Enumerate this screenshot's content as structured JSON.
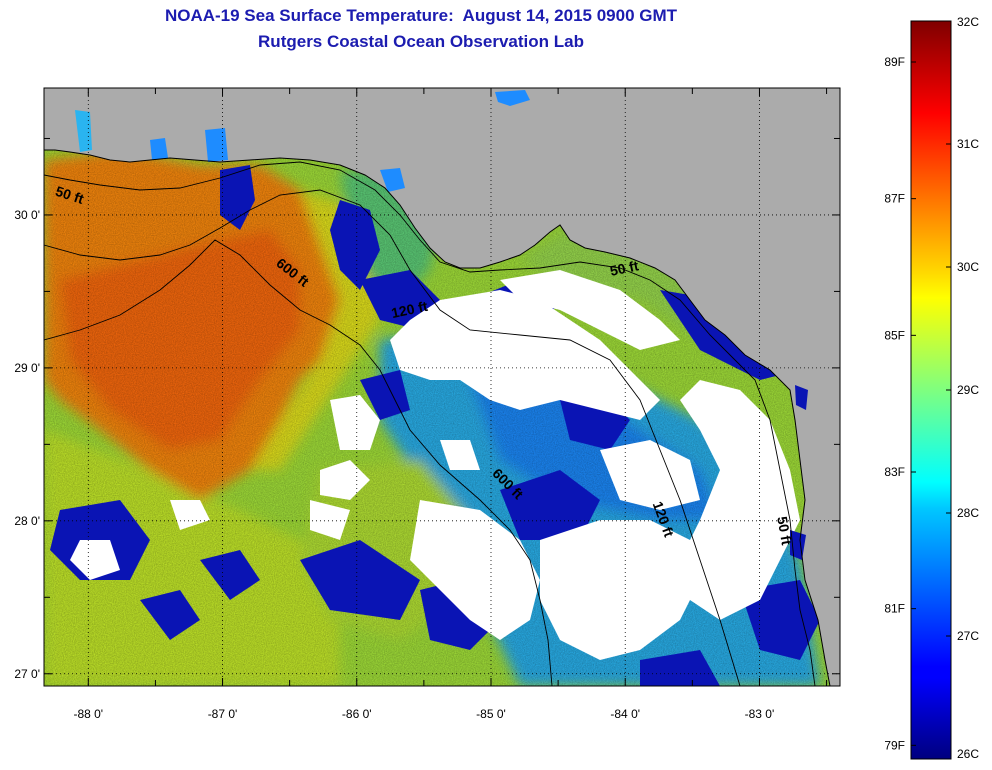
{
  "title": "NOAA-19 Sea Surface Temperature:  August 14, 2015 0900 GMT",
  "subtitle": "Rutgers Coastal Ocean Observation Lab",
  "map": {
    "lon_range": [
      -88.33,
      -82.4
    ],
    "lat_range": [
      26.92,
      30.83
    ],
    "lon_ticks": [
      -88,
      -87,
      -86,
      -85,
      -84,
      -83
    ],
    "lon_tick_labels": [
      "-88 0'",
      "-87 0'",
      "-86 0'",
      "-85 0'",
      "-84 0'",
      "-83 0'"
    ],
    "lat_ticks": [
      30,
      29,
      28,
      27
    ],
    "lat_tick_labels": [
      "30 0'",
      "29 0'",
      "28 0'",
      "27 0'"
    ],
    "grid": "dotted",
    "land_color": "#ababab",
    "cloud_color": "#ffffff",
    "isobath_labels": [
      {
        "text": "50 ft",
        "lon": -88.15,
        "lat": 30.1,
        "angle": 18
      },
      {
        "text": "600 ft",
        "lon": -86.5,
        "lat": 29.6,
        "angle": 38
      },
      {
        "text": "120 ft",
        "lon": -85.6,
        "lat": 29.35,
        "angle": -12
      },
      {
        "text": "50 ft",
        "lon": -84.0,
        "lat": 29.62,
        "angle": -12
      },
      {
        "text": "600 ft",
        "lon": -84.9,
        "lat": 28.22,
        "angle": 45
      },
      {
        "text": "120 ft",
        "lon": -83.75,
        "lat": 28.0,
        "angle": 70
      },
      {
        "text": "50 ft",
        "lon": -82.85,
        "lat": 27.93,
        "angle": 80
      }
    ]
  },
  "colorbar": {
    "min_c": 26,
    "max_c": 32,
    "celsius_ticks": [
      32,
      31,
      30,
      29,
      28,
      27,
      26
    ],
    "celsius_labels": [
      "32C",
      "31C",
      "30C",
      "29C",
      "28C",
      "27C",
      "26C"
    ],
    "fahrenheit_ticks": [
      89,
      87,
      85,
      83,
      81,
      79
    ],
    "fahrenheit_labels": [
      "89F",
      "87F",
      "85F",
      "83F",
      "81F",
      "79F"
    ]
  }
}
